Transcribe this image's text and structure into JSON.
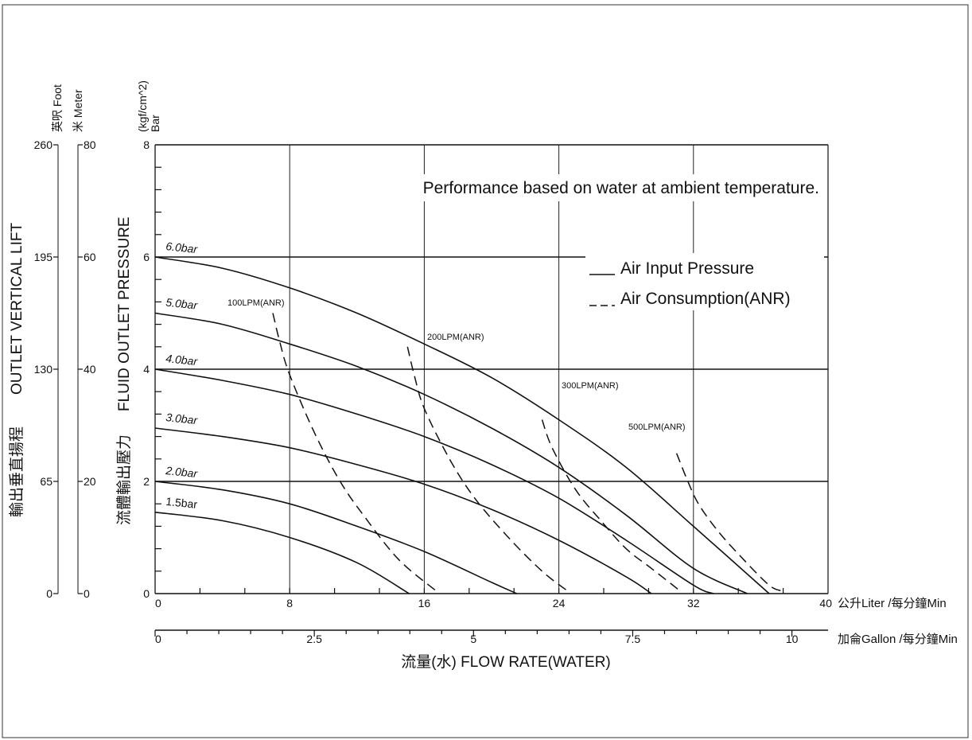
{
  "chart_data": {
    "type": "line",
    "note": "Performance based on water at ambient temperature.",
    "y_pressure": {
      "label": "FLUID OUTLET PRESSURE",
      "label_cn": "流體輸出壓力",
      "unit1": "Bar",
      "unit2": "(kgf/cm^2)",
      "range": [
        0,
        8
      ],
      "ticks": [
        "0",
        "2",
        "4",
        "6",
        "8"
      ]
    },
    "y_lift": {
      "label": "OUTLET VERTICAL LIFT",
      "label_cn": "輸出垂直揚程",
      "foot_unit": "英呎 Foot",
      "meter_unit": "米 Meter",
      "foot_ticks": [
        "0",
        "65",
        "130",
        "195",
        "260"
      ],
      "meter_ticks": [
        "0",
        "20",
        "40",
        "60",
        "80"
      ]
    },
    "x_liter": {
      "unit": "公升Liter /每分鐘Min",
      "range": [
        0,
        40
      ],
      "ticks": [
        "0",
        "8",
        "16",
        "24",
        "32",
        "40"
      ]
    },
    "x_gallon": {
      "unit": "加侖Gallon /每分鐘Min",
      "ticks": [
        "0",
        "2.5",
        "5",
        "7.5",
        "10"
      ]
    },
    "xlabel": "流量(水) FLOW RATE(WATER)",
    "legend": {
      "solid": "Air Input Pressure",
      "dashed": "Air Consumption(ANR)"
    },
    "pressure_curves": [
      {
        "name": "6.0bar",
        "x": [
          0,
          4,
          8,
          12,
          16,
          20,
          24,
          28,
          32,
          36.5
        ],
        "y": [
          6.0,
          5.8,
          5.45,
          5.0,
          4.45,
          3.85,
          3.1,
          2.25,
          1.2,
          0
        ]
      },
      {
        "name": "5.0bar",
        "x": [
          0,
          4,
          8,
          12,
          16,
          20,
          24,
          28,
          32,
          35.2
        ],
        "y": [
          5.0,
          4.8,
          4.45,
          4.05,
          3.55,
          2.95,
          2.25,
          1.4,
          0.45,
          0
        ]
      },
      {
        "name": "4.0bar",
        "x": [
          0,
          4,
          8,
          12,
          16,
          20,
          24,
          28,
          32,
          33.2
        ],
        "y": [
          4.0,
          3.8,
          3.55,
          3.2,
          2.8,
          2.3,
          1.7,
          0.95,
          0.15,
          0
        ]
      },
      {
        "name": "3.0bar",
        "x": [
          0,
          4,
          8,
          12,
          16,
          20,
          24,
          28,
          29.5
        ],
        "y": [
          2.95,
          2.8,
          2.6,
          2.3,
          1.95,
          1.5,
          0.95,
          0.3,
          0
        ]
      },
      {
        "name": "2.0bar",
        "x": [
          0,
          4,
          8,
          12,
          16,
          20,
          21.5
        ],
        "y": [
          2.0,
          1.85,
          1.6,
          1.2,
          0.75,
          0.2,
          0
        ]
      },
      {
        "name": "1.5bar",
        "x": [
          0,
          4,
          8,
          12,
          15.1
        ],
        "y": [
          1.45,
          1.3,
          1.0,
          0.55,
          0
        ]
      }
    ],
    "air_consumption_curves": [
      {
        "name": "100LPM(ANR)",
        "x": [
          7.0,
          7.4,
          8.0,
          9.5,
          11.0,
          12.5,
          14.5,
          16.7
        ],
        "y": [
          5.0,
          4.5,
          3.9,
          2.85,
          2.0,
          1.35,
          0.6,
          0.05
        ]
      },
      {
        "name": "200LPM(ANR)",
        "x": [
          15.0,
          15.4,
          16.0,
          17.5,
          19.0,
          21.0,
          23.0,
          24.5
        ],
        "y": [
          4.4,
          3.9,
          3.3,
          2.4,
          1.7,
          1.0,
          0.4,
          0.05
        ]
      },
      {
        "name": "300LPM(ANR)",
        "x": [
          23.0,
          23.6,
          25.0,
          26.5,
          28.0,
          29.5,
          31.2
        ],
        "y": [
          3.1,
          2.6,
          1.85,
          1.3,
          0.8,
          0.45,
          0.05
        ]
      },
      {
        "name": "500LPM(ANR)",
        "x": [
          31.0,
          31.6,
          32.3,
          33.5,
          35.0,
          36.5,
          37.2
        ],
        "y": [
          2.5,
          2.05,
          1.6,
          1.1,
          0.6,
          0.15,
          0.05
        ]
      }
    ]
  }
}
